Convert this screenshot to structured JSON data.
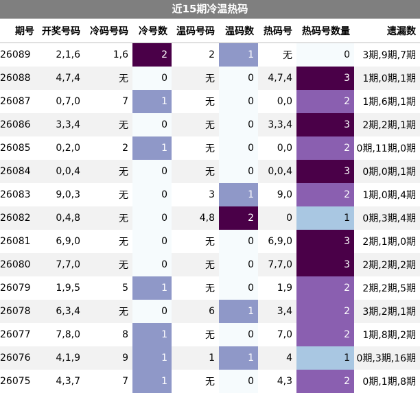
{
  "title": "近15期冷温热码",
  "headers": [
    "期号",
    "开奖号码",
    "冷码号码",
    "冷号数",
    "温码号码",
    "温码数",
    "热码号",
    "热码号数量",
    "遗漏数"
  ],
  "rows": [
    {
      "issue": "26089",
      "draw": "2,1,6",
      "cold": "1,6",
      "cold_n": "2",
      "warm": "2",
      "warm_n": "1",
      "hot": "无",
      "hot_n": "0",
      "miss": "3期,9期,7期"
    },
    {
      "issue": "26088",
      "draw": "4,7,4",
      "cold": "无",
      "cold_n": "0",
      "warm": "无",
      "warm_n": "0",
      "hot": "4,7,4",
      "hot_n": "3",
      "miss": "1期,0期,1期"
    },
    {
      "issue": "26087",
      "draw": "0,7,0",
      "cold": "7",
      "cold_n": "1",
      "warm": "无",
      "warm_n": "0",
      "hot": "0,0",
      "hot_n": "2",
      "miss": "1期,6期,1期"
    },
    {
      "issue": "26086",
      "draw": "3,3,4",
      "cold": "无",
      "cold_n": "0",
      "warm": "无",
      "warm_n": "0",
      "hot": "3,3,4",
      "hot_n": "3",
      "miss": "2期,2期,1期"
    },
    {
      "issue": "26085",
      "draw": "0,2,0",
      "cold": "2",
      "cold_n": "1",
      "warm": "无",
      "warm_n": "0",
      "hot": "0,0",
      "hot_n": "2",
      "miss": "0期,11期,0期"
    },
    {
      "issue": "26084",
      "draw": "0,0,4",
      "cold": "无",
      "cold_n": "0",
      "warm": "无",
      "warm_n": "0",
      "hot": "0,0,4",
      "hot_n": "3",
      "miss": "0期,0期,1期"
    },
    {
      "issue": "26083",
      "draw": "9,0,3",
      "cold": "无",
      "cold_n": "0",
      "warm": "3",
      "warm_n": "1",
      "hot": "9,0",
      "hot_n": "2",
      "miss": "1期,0期,4期"
    },
    {
      "issue": "26082",
      "draw": "0,4,8",
      "cold": "无",
      "cold_n": "0",
      "warm": "4,8",
      "warm_n": "2",
      "hot": "0",
      "hot_n": "1",
      "miss": "0期,3期,4期"
    },
    {
      "issue": "26081",
      "draw": "6,9,0",
      "cold": "无",
      "cold_n": "0",
      "warm": "无",
      "warm_n": "0",
      "hot": "6,9,0",
      "hot_n": "3",
      "miss": "2期,1期,0期"
    },
    {
      "issue": "26080",
      "draw": "7,7,0",
      "cold": "无",
      "cold_n": "0",
      "warm": "无",
      "warm_n": "0",
      "hot": "7,7,0",
      "hot_n": "3",
      "miss": "2期,2期,2期"
    },
    {
      "issue": "26079",
      "draw": "1,9,5",
      "cold": "5",
      "cold_n": "1",
      "warm": "无",
      "warm_n": "0",
      "hot": "1,9",
      "hot_n": "2",
      "miss": "2期,2期,5期"
    },
    {
      "issue": "26078",
      "draw": "6,3,4",
      "cold": "无",
      "cold_n": "0",
      "warm": "6",
      "warm_n": "1",
      "hot": "3,4",
      "hot_n": "2",
      "miss": "3期,2期,1期"
    },
    {
      "issue": "26077",
      "draw": "7,8,0",
      "cold": "8",
      "cold_n": "1",
      "warm": "无",
      "warm_n": "0",
      "hot": "7,0",
      "hot_n": "2",
      "miss": "1期,8期,2期"
    },
    {
      "issue": "26076",
      "draw": "4,1,9",
      "cold": "9",
      "cold_n": "1",
      "warm": "1",
      "warm_n": "1",
      "hot": "4",
      "hot_n": "1",
      "miss": "0期,3期,16期"
    },
    {
      "issue": "26075",
      "draw": "4,3,7",
      "cold": "7",
      "cold_n": "1",
      "warm": "无",
      "warm_n": "0",
      "hot": "4,3",
      "hot_n": "2",
      "miss": "0期,1期,8期"
    }
  ],
  "colors": {
    "header_bg": "#7f7f7f",
    "level_1": "#8f98c8",
    "level_2": "#8a5fb0",
    "level_3": "#4a0048",
    "hot_single": "#a9c7e2",
    "zero_bg": "#f6fbfd"
  }
}
